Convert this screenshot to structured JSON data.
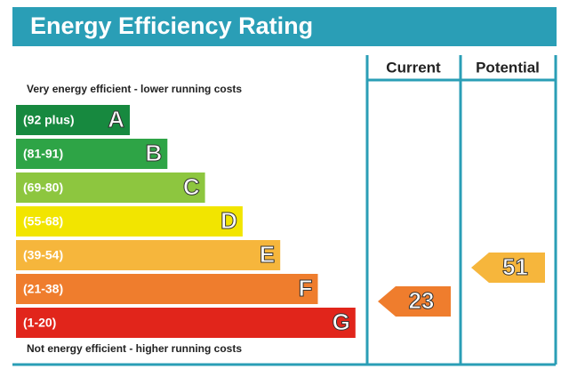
{
  "title": "Energy Efficiency Rating",
  "headers": {
    "current": "Current",
    "potential": "Potential"
  },
  "top_note": "Very energy efficient - lower running costs",
  "bottom_note": "Not energy efficient - higher running costs",
  "bands": [
    {
      "range": "(92 plus)",
      "letter": "A",
      "color": "#17893f"
    },
    {
      "range": "(81-91)",
      "letter": "B",
      "color": "#2ea446"
    },
    {
      "range": "(69-80)",
      "letter": "C",
      "color": "#8dc63f"
    },
    {
      "range": "(55-68)",
      "letter": "D",
      "color": "#f2e500"
    },
    {
      "range": "(39-54)",
      "letter": "E",
      "color": "#f6b63c"
    },
    {
      "range": "(21-38)",
      "letter": "F",
      "color": "#ef7d2d"
    },
    {
      "range": "(1-20)",
      "letter": "G",
      "color": "#e1251b"
    }
  ],
  "current": 23,
  "potential": 51
}
